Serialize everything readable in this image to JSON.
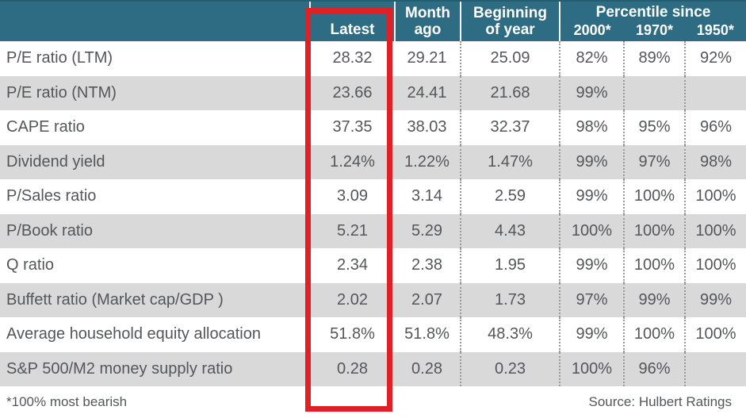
{
  "colors": {
    "header_bg": "#2d6c83",
    "row_alt_bg": "#d9d9d9",
    "highlight_red": "#df2127",
    "text": "#55565a"
  },
  "header": {
    "latest": "Latest",
    "month_ago_line1": "Month",
    "month_ago_line2": "ago",
    "beginning_line1": "Beginning",
    "beginning_line2": "of year",
    "percentile_group_title": "Percentile since",
    "percentile_cols": [
      "2000*",
      "1970*",
      "1950*"
    ]
  },
  "footer": {
    "footnote": "*100% most bearish",
    "source": "Source: Hulbert Ratings"
  },
  "chart_data": {
    "type": "table",
    "columns": [
      "Metric",
      "Latest",
      "Month ago",
      "Beginning of year",
      "Percentile since 2000*",
      "Percentile since 1970*",
      "Percentile since 1950*"
    ],
    "highlighted_column": "Latest",
    "rows": [
      {
        "label": "P/E ratio (LTM)",
        "latest": "28.32",
        "month_ago": "29.21",
        "beginning_of_year": "25.09",
        "pct_2000": "82%",
        "pct_1970": "89%",
        "pct_1950": "92%"
      },
      {
        "label": "P/E ratio (NTM)",
        "latest": "23.66",
        "month_ago": "24.41",
        "beginning_of_year": "21.68",
        "pct_2000": "99%",
        "pct_1970": "",
        "pct_1950": ""
      },
      {
        "label": "CAPE ratio",
        "latest": "37.35",
        "month_ago": "38.03",
        "beginning_of_year": "32.37",
        "pct_2000": "98%",
        "pct_1970": "95%",
        "pct_1950": "96%"
      },
      {
        "label": "Dividend yield",
        "latest": "1.24%",
        "month_ago": "1.22%",
        "beginning_of_year": "1.47%",
        "pct_2000": "99%",
        "pct_1970": "97%",
        "pct_1950": "98%"
      },
      {
        "label": "P/Sales ratio",
        "latest": "3.09",
        "month_ago": "3.14",
        "beginning_of_year": "2.59",
        "pct_2000": "99%",
        "pct_1970": "100%",
        "pct_1950": "100%"
      },
      {
        "label": "P/Book ratio",
        "latest": "5.21",
        "month_ago": "5.29",
        "beginning_of_year": "4.43",
        "pct_2000": "100%",
        "pct_1970": "100%",
        "pct_1950": "100%"
      },
      {
        "label": "Q ratio",
        "latest": "2.34",
        "month_ago": "2.38",
        "beginning_of_year": "1.95",
        "pct_2000": "99%",
        "pct_1970": "100%",
        "pct_1950": "100%"
      },
      {
        "label": "Buffett ratio (Market cap/GDP )",
        "latest": "2.02",
        "month_ago": "2.07",
        "beginning_of_year": "1.73",
        "pct_2000": "97%",
        "pct_1970": "99%",
        "pct_1950": "99%"
      },
      {
        "label": "Average household equity allocation",
        "latest": "51.8%",
        "month_ago": "51.8%",
        "beginning_of_year": "48.3%",
        "pct_2000": "99%",
        "pct_1970": "100%",
        "pct_1950": "100%"
      },
      {
        "label": "S&P 500/M2 money supply ratio",
        "latest": "0.28",
        "month_ago": "0.28",
        "beginning_of_year": "0.23",
        "pct_2000": "100%",
        "pct_1970": "96%",
        "pct_1950": ""
      }
    ],
    "footnote": "*100% most bearish",
    "source": "Source: Hulbert Ratings"
  }
}
